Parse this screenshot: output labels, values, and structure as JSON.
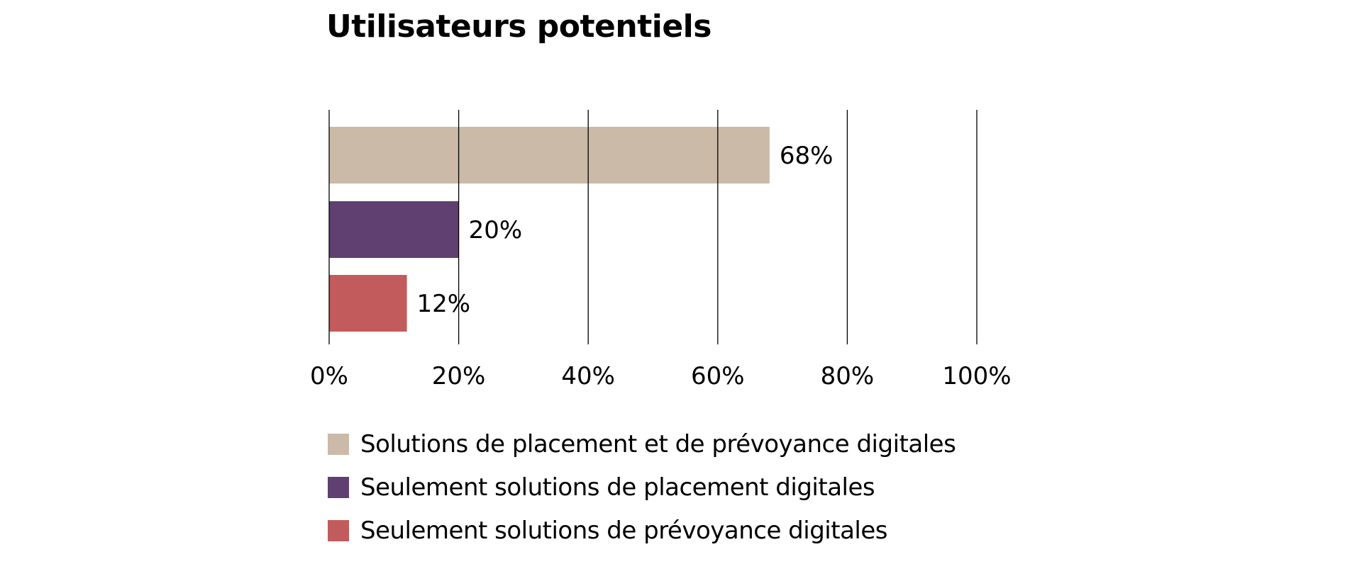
{
  "chart_data": {
    "type": "bar",
    "orientation": "horizontal",
    "title": "Utilisateurs potentiels",
    "categories": [
      "Solutions de placement et de prévoyance digitales",
      "Seulement solutions de placement digitales",
      "Seulement solutions de prévoyance digitales"
    ],
    "values": [
      68,
      20,
      12
    ],
    "data_labels": [
      "68%",
      "20%",
      "12%"
    ],
    "colors": [
      "#cbbaa8",
      "#5f4070",
      "#c25b5b"
    ],
    "xlim": [
      0,
      100
    ],
    "x_ticks": [
      0,
      20,
      40,
      60,
      80,
      100
    ],
    "x_tick_labels": [
      "0%",
      "20%",
      "40%",
      "60%",
      "80%",
      "100%"
    ],
    "grid": "vertical",
    "legend": "bottom-left",
    "xlabel": "",
    "ylabel": ""
  }
}
